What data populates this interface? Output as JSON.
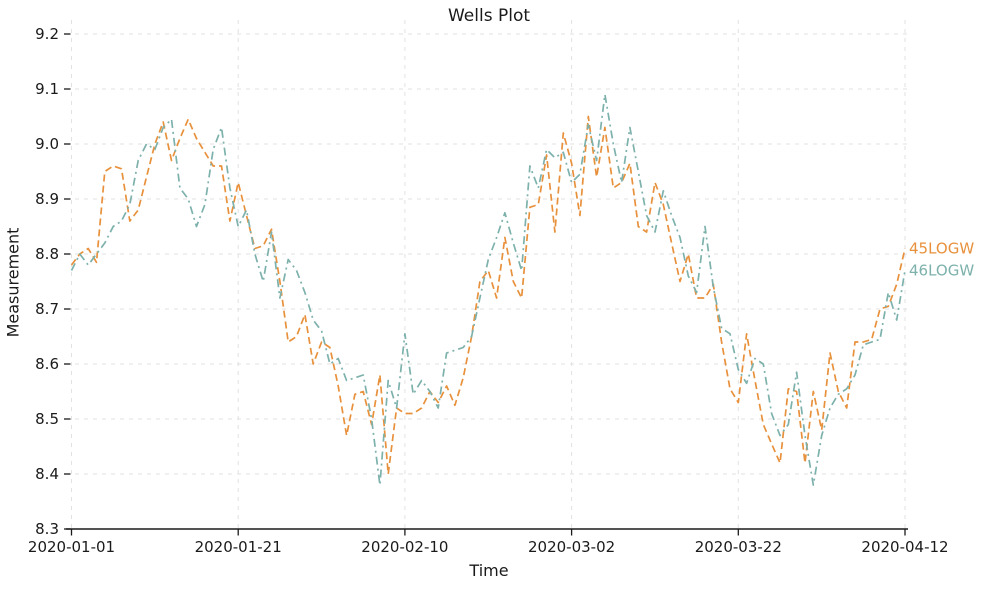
{
  "title": "Wells Plot",
  "axes": {
    "x_label": "Time",
    "y_label": "Measurement"
  },
  "colors": {
    "series_45logw": "#e8913c",
    "series_46logw": "#7db1ac",
    "grid": "#e2e2e2",
    "axis": "#1a1a1a",
    "background": "#ffffff"
  },
  "chart_data": {
    "type": "line",
    "title": "Wells Plot",
    "xlabel": "Time",
    "ylabel": "Measurement",
    "ylim": [
      8.3,
      9.2
    ],
    "y_ticks": [
      8.3,
      8.4,
      8.5,
      8.6,
      8.7,
      8.8,
      8.9,
      9.0,
      9.1,
      9.2
    ],
    "x_tick_positions": [
      0,
      20,
      40,
      60,
      80,
      100
    ],
    "x_tick_labels": [
      "2020-01-01",
      "2020-01-21",
      "2020-02-10",
      "2020-03-02",
      "2020-03-22",
      "2020-04-12"
    ],
    "grid": true,
    "legend_position": "right-of-line-ends",
    "series": [
      {
        "name": "45LOGW",
        "color": "#e8913c",
        "dash": "7 4",
        "values": [
          8.78,
          8.8,
          8.81,
          8.785,
          8.95,
          8.96,
          8.955,
          8.86,
          8.88,
          8.94,
          9.0,
          9.04,
          8.97,
          9.01,
          9.045,
          9.01,
          8.985,
          8.96,
          8.96,
          8.86,
          8.93,
          8.87,
          8.81,
          8.815,
          8.845,
          8.75,
          8.64,
          8.65,
          8.69,
          8.6,
          8.64,
          8.63,
          8.56,
          8.47,
          8.545,
          8.55,
          8.49,
          8.58,
          8.4,
          8.52,
          8.51,
          8.51,
          8.52,
          8.55,
          8.53,
          8.56,
          8.525,
          8.575,
          8.65,
          8.75,
          8.77,
          8.72,
          8.83,
          8.75,
          8.72,
          8.885,
          8.89,
          8.98,
          8.84,
          9.02,
          8.965,
          8.87,
          9.05,
          8.94,
          9.03,
          8.92,
          8.93,
          8.965,
          8.85,
          8.84,
          8.93,
          8.89,
          8.82,
          8.75,
          8.8,
          8.72,
          8.72,
          8.745,
          8.64,
          8.555,
          8.53,
          8.655,
          8.57,
          8.49,
          8.455,
          8.42,
          8.555,
          8.55,
          8.42,
          8.55,
          8.48,
          8.62,
          8.55,
          8.52,
          8.64,
          8.64,
          8.645,
          8.7,
          8.705,
          8.745,
          8.81
        ]
      },
      {
        "name": "46LOGW",
        "color": "#7db1ac",
        "dash": "8 4 2 4",
        "values": [
          8.77,
          8.8,
          8.78,
          8.8,
          8.82,
          8.85,
          8.86,
          8.89,
          8.97,
          9.0,
          8.99,
          9.03,
          9.045,
          8.92,
          8.9,
          8.85,
          8.89,
          8.99,
          9.03,
          8.92,
          8.85,
          8.88,
          8.8,
          8.75,
          8.84,
          8.72,
          8.79,
          8.77,
          8.73,
          8.68,
          8.66,
          8.6,
          8.61,
          8.57,
          8.575,
          8.58,
          8.5,
          8.38,
          8.57,
          8.52,
          8.655,
          8.545,
          8.57,
          8.55,
          8.52,
          8.62,
          8.625,
          8.63,
          8.65,
          8.72,
          8.79,
          8.83,
          8.875,
          8.82,
          8.77,
          8.96,
          8.92,
          8.99,
          8.975,
          8.985,
          8.93,
          8.945,
          9.035,
          8.97,
          9.09,
          9.0,
          8.93,
          9.03,
          8.95,
          8.87,
          8.84,
          8.915,
          8.87,
          8.83,
          8.76,
          8.73,
          8.85,
          8.74,
          8.665,
          8.655,
          8.59,
          8.565,
          8.61,
          8.6,
          8.51,
          8.47,
          8.49,
          8.585,
          8.47,
          8.38,
          8.47,
          8.52,
          8.545,
          8.555,
          8.58,
          8.635,
          8.64,
          8.645,
          8.73,
          8.68,
          8.77
        ]
      }
    ]
  }
}
